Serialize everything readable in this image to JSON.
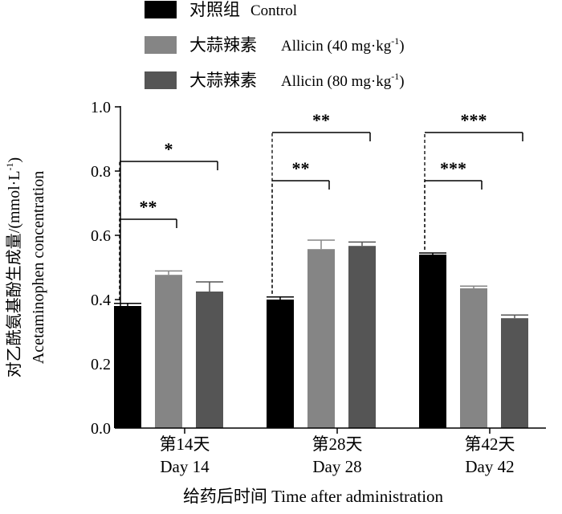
{
  "chart_data": {
    "type": "bar",
    "categories": [
      "第14天\nDay 14",
      "第28天\nDay 28",
      "第42天\nDay 42"
    ],
    "category_lines": [
      [
        "第14天",
        "Day 14"
      ],
      [
        "第28天",
        "Day 28"
      ],
      [
        "第42天",
        "Day 42"
      ]
    ],
    "series": [
      {
        "name": "对照组 Control",
        "legend_cn": "对照组",
        "legend_en": "Control",
        "legend_sup": "",
        "legend_close": "",
        "color": "#000000",
        "values": [
          0.38,
          0.4,
          0.54
        ],
        "errors": [
          0.008,
          0.008,
          0.005
        ]
      },
      {
        "name": "大蒜辣素 Allicin (40 mg·kg-1)",
        "legend_cn": "大蒜辣素",
        "legend_en": "Allicin (40 mg·kg",
        "legend_sup": "-1",
        "legend_close": ")",
        "color": "#858585",
        "values": [
          0.477,
          0.557,
          0.435
        ],
        "errors": [
          0.012,
          0.028,
          0.007
        ]
      },
      {
        "name": "大蒜辣素 Allicin (80 mg·kg-1)",
        "legend_cn": "大蒜辣素",
        "legend_en": "Allicin (80 mg·kg",
        "legend_sup": "-1",
        "legend_close": ")",
        "color": "#555555",
        "values": [
          0.425,
          0.567,
          0.342
        ],
        "errors": [
          0.03,
          0.012,
          0.01
        ]
      }
    ],
    "ylabel_cn": "对乙酰氨基酚生成量/(mmol·L",
    "ylabel_sup": "-1",
    "ylabel_close": ")",
    "ylabel_en": "Acetaminophen concentration",
    "xlabel": "给药后时间 Time after administration",
    "ylim": [
      0,
      1.0
    ],
    "yticks": [
      0.0,
      0.2,
      0.4,
      0.6,
      0.8,
      1.0
    ],
    "ytick_labels": [
      "0.0",
      "0.2",
      "0.4",
      "0.6",
      "0.8",
      "1.0"
    ],
    "significance": [
      {
        "group": 0,
        "from_series": 0,
        "to_series": 1,
        "y": 0.65,
        "label": "**"
      },
      {
        "group": 0,
        "from_series": 0,
        "to_series": 2,
        "y": 0.83,
        "label": "*"
      },
      {
        "group": 1,
        "from_series": 0,
        "to_series": 1,
        "y": 0.77,
        "label": "**"
      },
      {
        "group": 1,
        "from_series": 0,
        "to_series": 2,
        "y": 0.92,
        "label": "**"
      },
      {
        "group": 2,
        "from_series": 0,
        "to_series": 1,
        "y": 0.77,
        "label": "***"
      },
      {
        "group": 2,
        "from_series": 0,
        "to_series": 2,
        "y": 0.92,
        "label": "***"
      }
    ]
  }
}
